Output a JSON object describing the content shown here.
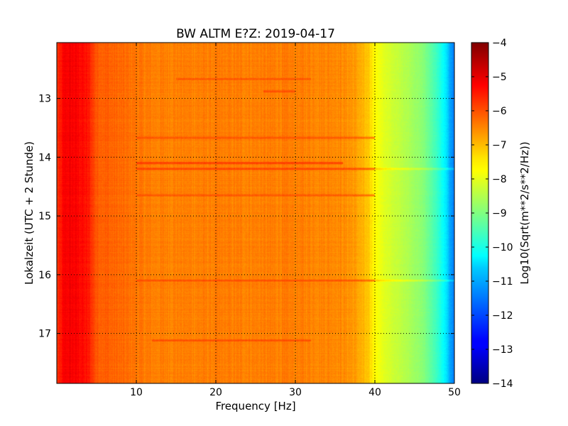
{
  "chart_data": {
    "type": "heatmap",
    "title": "BW ALTM E?Z: 2019-04-17",
    "xlabel": "Frequency [Hz]",
    "ylabel": "Lokalzeit (UTC + 2 Stunde)",
    "colorbar_label": "Log10(Sqrt(m**2/s**2/Hz))",
    "xlim": [
      0,
      50
    ],
    "ylim": [
      12.05,
      17.85
    ],
    "y_inverted": true,
    "x_ticks": [
      10,
      20,
      30,
      40,
      50
    ],
    "y_ticks": [
      13,
      14,
      15,
      16,
      17
    ],
    "colorbar_range": [
      -14,
      -4
    ],
    "colorbar_ticks": [
      -4,
      -5,
      -6,
      -7,
      -8,
      -9,
      -10,
      -11,
      -12,
      -13,
      -14
    ],
    "colormap": "jet",
    "grid": true,
    "spectral_profile": {
      "frequency_hz": [
        0,
        1,
        2,
        3,
        4,
        5,
        8,
        12,
        20,
        30,
        35,
        37,
        38,
        39,
        40,
        41,
        42,
        44,
        46,
        47,
        48,
        49,
        49.5,
        50
      ],
      "log10_amplitude": [
        -5.8,
        -5.2,
        -5.2,
        -5.3,
        -5.5,
        -6.1,
        -6.3,
        -6.5,
        -6.5,
        -6.5,
        -6.55,
        -6.7,
        -6.9,
        -7.2,
        -7.7,
        -8.0,
        -8.2,
        -8.5,
        -8.9,
        -9.3,
        -9.8,
        -10.5,
        -11.2,
        -11.5
      ]
    },
    "horizontal_bands": [
      {
        "time": 12.67,
        "x_range": [
          15,
          32
        ],
        "log10_amplitude": -5.9
      },
      {
        "time": 12.88,
        "x_range": [
          26,
          30
        ],
        "log10_amplitude": -5.8
      },
      {
        "time": 13.67,
        "x_range": [
          10,
          40
        ],
        "log10_amplitude": -5.9
      },
      {
        "time": 14.1,
        "x_range": [
          10,
          36
        ],
        "log10_amplitude": -5.5
      },
      {
        "time": 14.2,
        "x_range": [
          10,
          50
        ],
        "log10_amplitude": -5.6
      },
      {
        "time": 14.65,
        "x_range": [
          10,
          40
        ],
        "log10_amplitude": -5.9
      },
      {
        "time": 16.1,
        "x_range": [
          10,
          50
        ],
        "log10_amplitude": -5.8
      },
      {
        "time": 17.12,
        "x_range": [
          12,
          32
        ],
        "log10_amplitude": -5.8
      }
    ]
  }
}
